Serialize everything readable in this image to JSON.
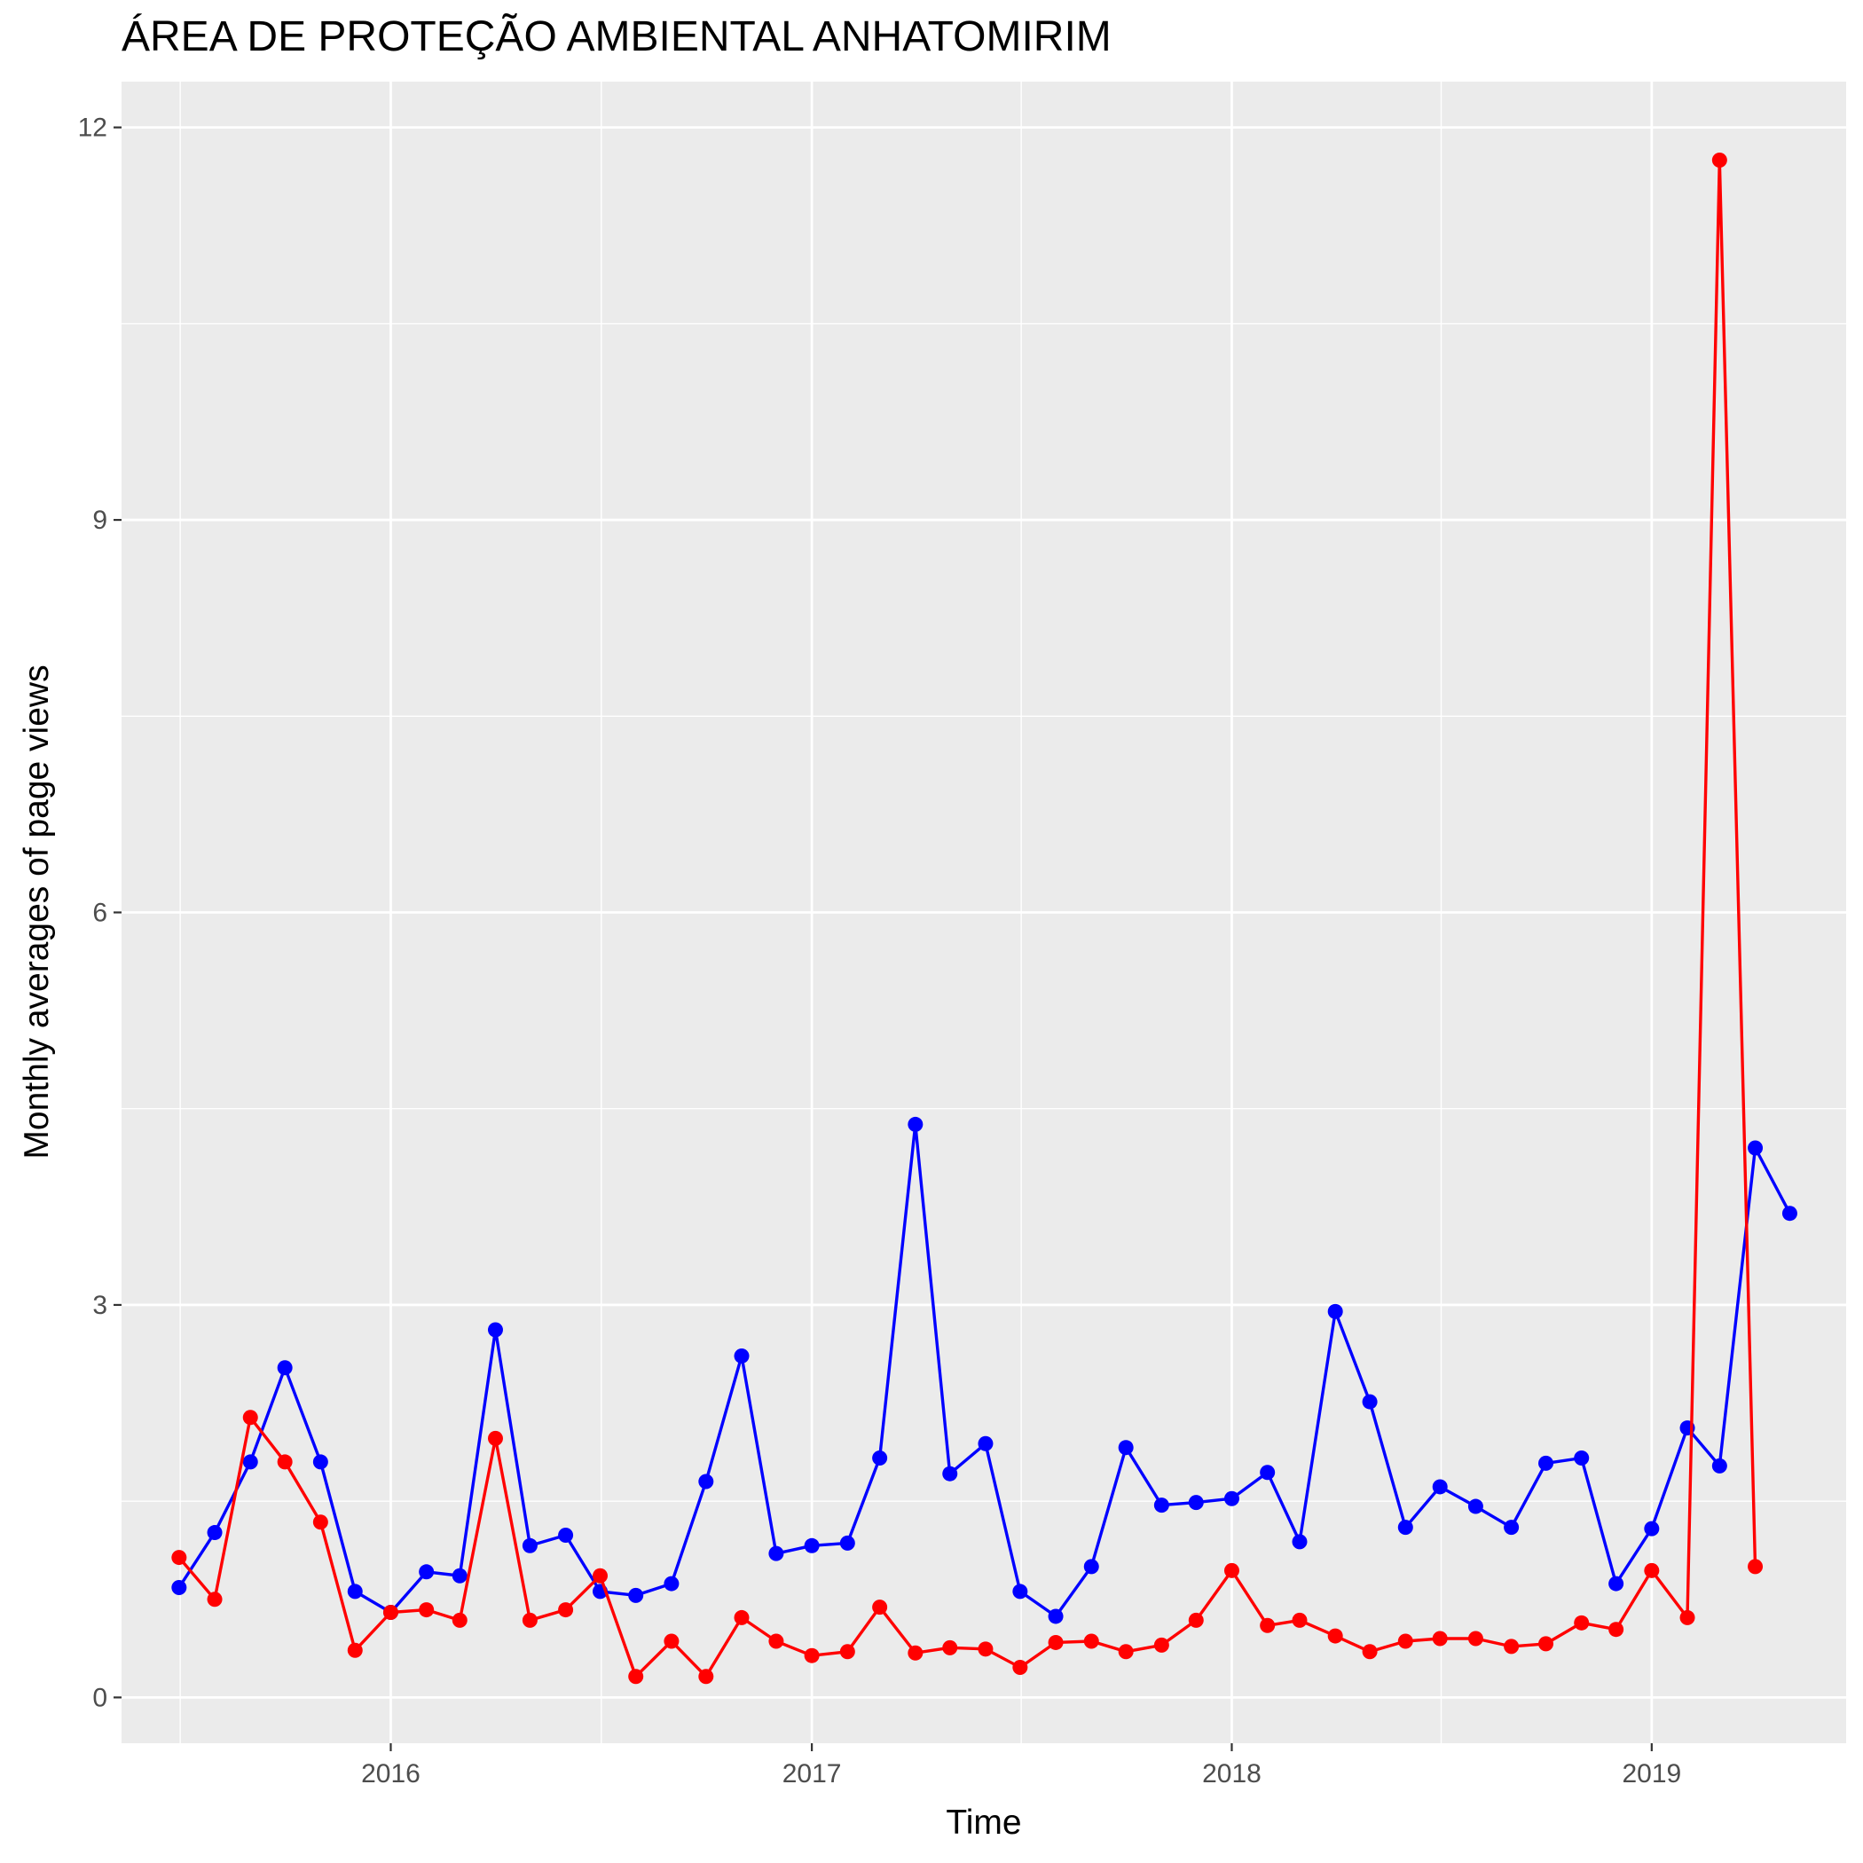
{
  "chart_data": {
    "type": "line",
    "title": "ÁREA DE PROTEÇÃO AMBIENTAL ANHATOMIRIM",
    "xlabel": "Time",
    "ylabel": "Monthly averages of page views",
    "xlim": [
      "2015-05-12",
      "2019-06-19"
    ],
    "ylim": [
      -0.35,
      12.35
    ],
    "x_ticks": [
      {
        "date": "2016-01-01",
        "label": "2016"
      },
      {
        "date": "2017-01-01",
        "label": "2017"
      },
      {
        "date": "2018-01-01",
        "label": "2018"
      },
      {
        "date": "2019-01-01",
        "label": "2019"
      }
    ],
    "y_ticks": [
      {
        "value": 0,
        "label": "0"
      },
      {
        "value": 3,
        "label": "3"
      },
      {
        "value": 6,
        "label": "6"
      },
      {
        "value": 9,
        "label": "9"
      },
      {
        "value": 12,
        "label": "12"
      }
    ],
    "grid": true,
    "legend": "none",
    "background_color": "#ebebeb",
    "grid_color": "#ffffff",
    "series": [
      {
        "color": "#0000ff",
        "x": [
          "2015-07-01",
          "2015-08-01",
          "2015-09-01",
          "2015-10-01",
          "2015-11-01",
          "2015-12-01",
          "2016-01-01",
          "2016-02-01",
          "2016-03-01",
          "2016-04-01",
          "2016-05-01",
          "2016-06-01",
          "2016-07-01",
          "2016-08-01",
          "2016-09-01",
          "2016-10-01",
          "2016-11-01",
          "2016-12-01",
          "2017-01-01",
          "2017-02-01",
          "2017-03-01",
          "2017-04-01",
          "2017-05-01",
          "2017-06-01",
          "2017-07-01",
          "2017-08-01",
          "2017-09-01",
          "2017-10-01",
          "2017-11-01",
          "2017-12-01",
          "2018-01-01",
          "2018-02-01",
          "2018-03-01",
          "2018-04-01",
          "2018-05-01",
          "2018-06-01",
          "2018-07-01",
          "2018-08-01",
          "2018-09-01",
          "2018-10-01",
          "2018-11-01",
          "2018-12-01",
          "2019-01-01",
          "2019-02-01",
          "2019-03-01",
          "2019-04-01",
          "2019-05-01"
        ],
        "y": [
          0.84,
          1.26,
          1.8,
          2.52,
          1.8,
          0.81,
          0.65,
          0.96,
          0.93,
          2.81,
          1.16,
          1.24,
          0.81,
          0.78,
          0.87,
          1.65,
          2.61,
          1.1,
          1.16,
          1.18,
          1.83,
          4.38,
          1.71,
          1.94,
          0.81,
          0.62,
          1.0,
          1.91,
          1.47,
          1.49,
          1.52,
          1.72,
          1.19,
          2.95,
          2.26,
          1.3,
          1.61,
          1.46,
          1.3,
          1.79,
          1.83,
          0.87,
          1.29,
          2.06,
          1.77,
          4.2,
          3.7
        ]
      },
      {
        "color": "#ff0000",
        "x": [
          "2015-07-01",
          "2015-08-01",
          "2015-09-01",
          "2015-10-01",
          "2015-11-01",
          "2015-12-01",
          "2016-01-01",
          "2016-02-01",
          "2016-03-01",
          "2016-04-01",
          "2016-05-01",
          "2016-06-01",
          "2016-07-01",
          "2016-08-01",
          "2016-09-01",
          "2016-10-01",
          "2016-11-01",
          "2016-12-01",
          "2017-01-01",
          "2017-02-01",
          "2017-03-01",
          "2017-04-01",
          "2017-05-01",
          "2017-06-01",
          "2017-07-01",
          "2017-08-01",
          "2017-09-01",
          "2017-10-01",
          "2017-11-01",
          "2017-12-01",
          "2018-01-01",
          "2018-02-01",
          "2018-03-01",
          "2018-04-01",
          "2018-05-01",
          "2018-06-01",
          "2018-07-01",
          "2018-08-01",
          "2018-09-01",
          "2018-10-01",
          "2018-11-01",
          "2018-12-01",
          "2019-01-01",
          "2019-02-01",
          "2019-03-01",
          "2019-04-01"
        ],
        "y": [
          1.07,
          0.75,
          2.14,
          1.8,
          1.34,
          0.36,
          0.65,
          0.67,
          0.59,
          1.98,
          0.59,
          0.67,
          0.93,
          0.16,
          0.43,
          0.16,
          0.61,
          0.43,
          0.32,
          0.35,
          0.69,
          0.34,
          0.38,
          0.37,
          0.23,
          0.42,
          0.43,
          0.35,
          0.4,
          0.59,
          0.97,
          0.55,
          0.59,
          0.47,
          0.35,
          0.43,
          0.45,
          0.45,
          0.39,
          0.41,
          0.57,
          0.52,
          0.97,
          0.61,
          11.75,
          1.0
        ]
      }
    ]
  }
}
